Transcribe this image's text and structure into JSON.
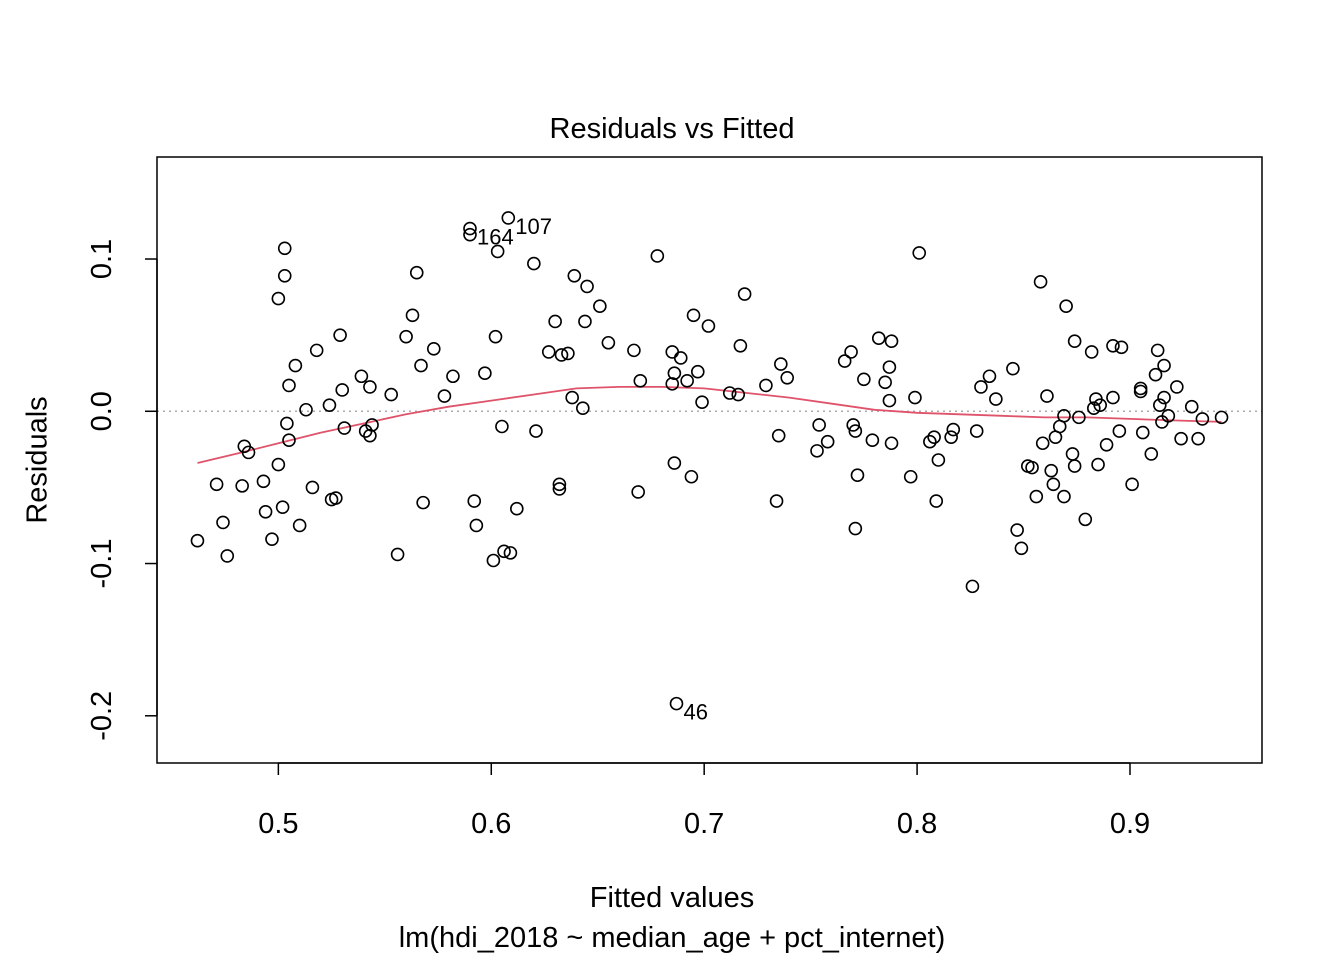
{
  "chart_data": {
    "type": "scatter",
    "title": "Residuals vs Fitted",
    "xlabel": "Fitted values",
    "subtitle": "lm(hdi_2018 ~ median_age + pct_internet)",
    "ylabel": "Residuals",
    "xlim": [
      0.443,
      0.962
    ],
    "ylim": [
      -0.231,
      0.167
    ],
    "x_ticks": [
      0.5,
      0.6,
      0.7,
      0.8,
      0.9
    ],
    "x_tick_labels": [
      "0.5",
      "0.6",
      "0.7",
      "0.8",
      "0.9"
    ],
    "y_ticks": [
      -0.2,
      -0.1,
      0.0,
      0.1
    ],
    "y_tick_labels": [
      "-0.2",
      "-0.1",
      "0.0",
      "0.1"
    ],
    "reference_line": {
      "y": 0,
      "style": "dotted",
      "color": "#aaaaaa"
    },
    "point_color": "#000000",
    "smooth_color": "#DF536B",
    "points": [
      [
        0.462,
        -0.085
      ],
      [
        0.471,
        -0.048
      ],
      [
        0.474,
        -0.073
      ],
      [
        0.476,
        -0.095
      ],
      [
        0.483,
        -0.049
      ],
      [
        0.484,
        -0.023
      ],
      [
        0.486,
        -0.027
      ],
      [
        0.493,
        -0.046
      ],
      [
        0.494,
        -0.066
      ],
      [
        0.497,
        -0.084
      ],
      [
        0.5,
        -0.035
      ],
      [
        0.5,
        0.074
      ],
      [
        0.502,
        -0.063
      ],
      [
        0.503,
        0.107
      ],
      [
        0.503,
        0.089
      ],
      [
        0.504,
        -0.008
      ],
      [
        0.505,
        0.017
      ],
      [
        0.505,
        -0.019
      ],
      [
        0.508,
        0.03
      ],
      [
        0.51,
        -0.075
      ],
      [
        0.513,
        0.001
      ],
      [
        0.516,
        -0.05
      ],
      [
        0.518,
        0.04
      ],
      [
        0.524,
        0.004
      ],
      [
        0.525,
        -0.058
      ],
      [
        0.527,
        -0.057
      ],
      [
        0.529,
        0.05
      ],
      [
        0.53,
        0.014
      ],
      [
        0.531,
        -0.011
      ],
      [
        0.539,
        0.023
      ],
      [
        0.541,
        -0.013
      ],
      [
        0.543,
        -0.016
      ],
      [
        0.543,
        0.016
      ],
      [
        0.544,
        -0.009
      ],
      [
        0.553,
        0.011
      ],
      [
        0.556,
        -0.094
      ],
      [
        0.56,
        0.049
      ],
      [
        0.563,
        0.063
      ],
      [
        0.565,
        0.091
      ],
      [
        0.567,
        0.03
      ],
      [
        0.568,
        -0.06
      ],
      [
        0.573,
        0.041
      ],
      [
        0.578,
        0.01
      ],
      [
        0.582,
        0.023
      ],
      [
        0.59,
        0.12
      ],
      [
        0.59,
        0.116
      ],
      [
        0.592,
        -0.059
      ],
      [
        0.593,
        -0.075
      ],
      [
        0.597,
        0.025
      ],
      [
        0.601,
        -0.098
      ],
      [
        0.602,
        0.049
      ],
      [
        0.603,
        0.105
      ],
      [
        0.605,
        -0.01
      ],
      [
        0.606,
        -0.092
      ],
      [
        0.608,
        0.127
      ],
      [
        0.609,
        -0.093
      ],
      [
        0.612,
        -0.064
      ],
      [
        0.62,
        0.097
      ],
      [
        0.621,
        -0.013
      ],
      [
        0.627,
        0.039
      ],
      [
        0.63,
        0.059
      ],
      [
        0.632,
        -0.048
      ],
      [
        0.632,
        -0.051
      ],
      [
        0.633,
        0.037
      ],
      [
        0.636,
        0.038
      ],
      [
        0.638,
        0.009
      ],
      [
        0.639,
        0.089
      ],
      [
        0.643,
        0.002
      ],
      [
        0.644,
        0.059
      ],
      [
        0.645,
        0.082
      ],
      [
        0.651,
        0.069
      ],
      [
        0.655,
        0.045
      ],
      [
        0.667,
        0.04
      ],
      [
        0.669,
        -0.053
      ],
      [
        0.67,
        0.02
      ],
      [
        0.678,
        0.102
      ],
      [
        0.685,
        0.039
      ],
      [
        0.685,
        0.018
      ],
      [
        0.686,
        0.025
      ],
      [
        0.686,
        -0.034
      ],
      [
        0.687,
        -0.192
      ],
      [
        0.689,
        0.035
      ],
      [
        0.692,
        0.02
      ],
      [
        0.694,
        -0.043
      ],
      [
        0.695,
        0.063
      ],
      [
        0.697,
        0.026
      ],
      [
        0.699,
        0.006
      ],
      [
        0.702,
        0.056
      ],
      [
        0.712,
        0.012
      ],
      [
        0.716,
        0.011
      ],
      [
        0.717,
        0.043
      ],
      [
        0.719,
        0.077
      ],
      [
        0.729,
        0.017
      ],
      [
        0.734,
        -0.059
      ],
      [
        0.735,
        -0.016
      ],
      [
        0.736,
        0.031
      ],
      [
        0.739,
        0.022
      ],
      [
        0.753,
        -0.026
      ],
      [
        0.754,
        -0.009
      ],
      [
        0.758,
        -0.02
      ],
      [
        0.766,
        0.033
      ],
      [
        0.769,
        0.039
      ],
      [
        0.77,
        -0.009
      ],
      [
        0.771,
        -0.077
      ],
      [
        0.771,
        -0.013
      ],
      [
        0.772,
        -0.042
      ],
      [
        0.775,
        0.021
      ],
      [
        0.779,
        -0.019
      ],
      [
        0.782,
        0.048
      ],
      [
        0.785,
        0.019
      ],
      [
        0.787,
        0.007
      ],
      [
        0.787,
        0.029
      ],
      [
        0.788,
        0.046
      ],
      [
        0.788,
        -0.021
      ],
      [
        0.797,
        -0.043
      ],
      [
        0.799,
        0.009
      ],
      [
        0.801,
        0.104
      ],
      [
        0.806,
        -0.02
      ],
      [
        0.808,
        -0.017
      ],
      [
        0.809,
        -0.059
      ],
      [
        0.81,
        -0.032
      ],
      [
        0.816,
        -0.017
      ],
      [
        0.817,
        -0.012
      ],
      [
        0.826,
        -0.115
      ],
      [
        0.828,
        -0.013
      ],
      [
        0.83,
        0.016
      ],
      [
        0.834,
        0.023
      ],
      [
        0.837,
        0.008
      ],
      [
        0.845,
        0.028
      ],
      [
        0.847,
        -0.078
      ],
      [
        0.849,
        -0.09
      ],
      [
        0.852,
        -0.036
      ],
      [
        0.854,
        -0.037
      ],
      [
        0.856,
        -0.056
      ],
      [
        0.858,
        0.085
      ],
      [
        0.859,
        -0.021
      ],
      [
        0.861,
        0.01
      ],
      [
        0.863,
        -0.039
      ],
      [
        0.864,
        -0.048
      ],
      [
        0.865,
        -0.017
      ],
      [
        0.867,
        -0.01
      ],
      [
        0.869,
        -0.056
      ],
      [
        0.869,
        -0.003
      ],
      [
        0.87,
        0.069
      ],
      [
        0.873,
        -0.028
      ],
      [
        0.874,
        -0.036
      ],
      [
        0.874,
        0.046
      ],
      [
        0.876,
        -0.004
      ],
      [
        0.879,
        -0.071
      ],
      [
        0.882,
        0.039
      ],
      [
        0.883,
        0.002
      ],
      [
        0.884,
        0.008
      ],
      [
        0.885,
        -0.035
      ],
      [
        0.886,
        0.004
      ],
      [
        0.889,
        -0.022
      ],
      [
        0.892,
        0.043
      ],
      [
        0.892,
        0.009
      ],
      [
        0.895,
        -0.013
      ],
      [
        0.896,
        0.042
      ],
      [
        0.901,
        -0.048
      ],
      [
        0.905,
        0.015
      ],
      [
        0.905,
        0.013
      ],
      [
        0.906,
        -0.014
      ],
      [
        0.91,
        -0.028
      ],
      [
        0.912,
        0.024
      ],
      [
        0.913,
        0.04
      ],
      [
        0.914,
        0.004
      ],
      [
        0.915,
        -0.007
      ],
      [
        0.916,
        0.03
      ],
      [
        0.916,
        0.009
      ],
      [
        0.918,
        -0.003
      ],
      [
        0.922,
        0.016
      ],
      [
        0.924,
        -0.018
      ],
      [
        0.929,
        0.003
      ],
      [
        0.932,
        -0.018
      ],
      [
        0.934,
        -0.005
      ],
      [
        0.943,
        -0.004
      ]
    ],
    "labeled_points": [
      {
        "label": "107",
        "x": 0.608,
        "y": 0.127
      },
      {
        "label": "164",
        "x": 0.59,
        "y": 0.12
      },
      {
        "label": "46",
        "x": 0.687,
        "y": -0.192
      }
    ],
    "smooth_line": [
      [
        0.462,
        -0.034
      ],
      [
        0.48,
        -0.028
      ],
      [
        0.5,
        -0.021
      ],
      [
        0.52,
        -0.014
      ],
      [
        0.54,
        -0.008
      ],
      [
        0.56,
        -0.002
      ],
      [
        0.58,
        0.003
      ],
      [
        0.6,
        0.007
      ],
      [
        0.62,
        0.011
      ],
      [
        0.64,
        0.015
      ],
      [
        0.66,
        0.016
      ],
      [
        0.68,
        0.016
      ],
      [
        0.7,
        0.015
      ],
      [
        0.72,
        0.012
      ],
      [
        0.74,
        0.009
      ],
      [
        0.76,
        0.005
      ],
      [
        0.78,
        0.001
      ],
      [
        0.8,
        -0.001
      ],
      [
        0.82,
        -0.002
      ],
      [
        0.84,
        -0.003
      ],
      [
        0.86,
        -0.004
      ],
      [
        0.88,
        -0.004
      ],
      [
        0.9,
        -0.005
      ],
      [
        0.92,
        -0.006
      ],
      [
        0.943,
        -0.007
      ]
    ]
  }
}
